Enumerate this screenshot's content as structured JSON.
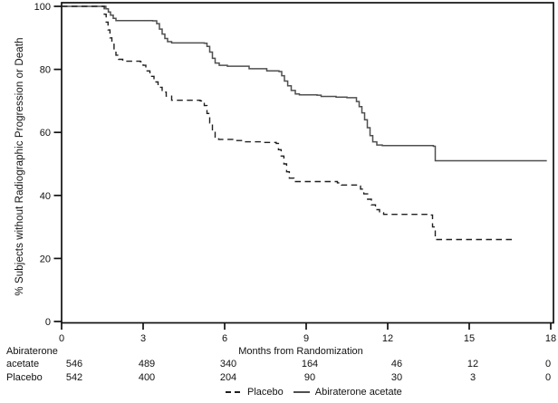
{
  "chart_data": {
    "type": "line",
    "subtype": "kaplan-meier-step",
    "title": "",
    "xlabel": "Months from Randomization",
    "ylabel": "% Subjects without Radiographic Progression or Death",
    "xlim": [
      0,
      18
    ],
    "ylim": [
      0,
      100
    ],
    "x_ticks": [
      0,
      3,
      6,
      9,
      12,
      15,
      18
    ],
    "y_ticks": [
      0,
      20,
      40,
      60,
      80,
      100
    ],
    "grid": false,
    "legend_position": "bottom",
    "frame_color": "#111111",
    "series": [
      {
        "name": "Abiraterone acetate",
        "style": "solid",
        "color": "#4f4f4f",
        "points": [
          [
            0,
            100
          ],
          [
            1.55,
            100
          ],
          [
            1.63,
            99.2
          ],
          [
            1.72,
            98.2
          ],
          [
            1.8,
            97.2
          ],
          [
            1.9,
            96.2
          ],
          [
            2.0,
            95.5
          ],
          [
            3.35,
            95.4
          ],
          [
            3.5,
            94.5
          ],
          [
            3.6,
            92.8
          ],
          [
            3.7,
            91.2
          ],
          [
            3.8,
            89.8
          ],
          [
            3.9,
            88.8
          ],
          [
            4.05,
            88.4
          ],
          [
            5.25,
            88.3
          ],
          [
            5.35,
            87.3
          ],
          [
            5.45,
            85.5
          ],
          [
            5.55,
            83.5
          ],
          [
            5.65,
            82
          ],
          [
            5.8,
            81.3
          ],
          [
            6.1,
            81
          ],
          [
            6.9,
            80.2
          ],
          [
            7.55,
            79.5
          ],
          [
            8.0,
            79.3
          ],
          [
            8.1,
            78
          ],
          [
            8.2,
            76.3
          ],
          [
            8.32,
            74.8
          ],
          [
            8.45,
            73.3
          ],
          [
            8.6,
            72.2
          ],
          [
            8.75,
            71.9
          ],
          [
            9.4,
            71.8
          ],
          [
            9.55,
            71.4
          ],
          [
            10.1,
            71.2
          ],
          [
            10.5,
            71
          ],
          [
            10.85,
            69.8
          ],
          [
            10.95,
            68.2
          ],
          [
            11.05,
            66.2
          ],
          [
            11.15,
            64
          ],
          [
            11.25,
            61.5
          ],
          [
            11.35,
            59
          ],
          [
            11.45,
            57
          ],
          [
            11.6,
            56
          ],
          [
            11.8,
            55.8
          ],
          [
            13.68,
            55.6
          ],
          [
            13.75,
            51
          ],
          [
            17.83,
            50.8
          ]
        ]
      },
      {
        "name": "Placebo",
        "style": "dashed",
        "color": "#1f1f1f",
        "points": [
          [
            0,
            100
          ],
          [
            1.5,
            100
          ],
          [
            1.57,
            97.5
          ],
          [
            1.64,
            95
          ],
          [
            1.71,
            92.5
          ],
          [
            1.78,
            90
          ],
          [
            1.85,
            88
          ],
          [
            1.93,
            86
          ],
          [
            2.0,
            84.5
          ],
          [
            2.1,
            83.2
          ],
          [
            2.25,
            82.6
          ],
          [
            2.9,
            82.4
          ],
          [
            3.0,
            81.3
          ],
          [
            3.1,
            79.5
          ],
          [
            3.25,
            77.8
          ],
          [
            3.4,
            76
          ],
          [
            3.55,
            74.3
          ],
          [
            3.7,
            72.8
          ],
          [
            3.85,
            71.5
          ],
          [
            4.05,
            70.2
          ],
          [
            5.1,
            70
          ],
          [
            5.25,
            68.5
          ],
          [
            5.35,
            66
          ],
          [
            5.45,
            63
          ],
          [
            5.55,
            60.5
          ],
          [
            5.65,
            58.5
          ],
          [
            5.78,
            57.8
          ],
          [
            6.4,
            57.4
          ],
          [
            6.7,
            57
          ],
          [
            7.4,
            56.8
          ],
          [
            7.9,
            56.5
          ],
          [
            7.98,
            54.5
          ],
          [
            8.08,
            52.5
          ],
          [
            8.18,
            50
          ],
          [
            8.28,
            47.5
          ],
          [
            8.38,
            45.5
          ],
          [
            8.55,
            44.4
          ],
          [
            10.15,
            44
          ],
          [
            10.3,
            43.3
          ],
          [
            10.9,
            43
          ],
          [
            11.0,
            42
          ],
          [
            11.12,
            40.5
          ],
          [
            11.26,
            38.8
          ],
          [
            11.4,
            37
          ],
          [
            11.55,
            35.5
          ],
          [
            11.7,
            34.5
          ],
          [
            11.85,
            34
          ],
          [
            13.55,
            33.8
          ],
          [
            13.65,
            30
          ],
          [
            13.75,
            26
          ],
          [
            16.65,
            25.8
          ]
        ]
      }
    ],
    "at_risk": {
      "rows": [
        {
          "label": "Abiraterone acetate",
          "label_lines": [
            "Abiraterone",
            "acetate"
          ],
          "counts": [
            "546",
            "489",
            "340",
            "164",
            "46",
            "12",
            "0"
          ]
        },
        {
          "label": "Placebo",
          "label_lines": [
            "Placebo"
          ],
          "counts": [
            "542",
            "400",
            "204",
            "90",
            "30",
            "3",
            "0"
          ]
        }
      ]
    },
    "legend": [
      {
        "label": "Placebo",
        "style": "dashed"
      },
      {
        "label": "Abiraterone acetate",
        "style": "solid"
      }
    ]
  }
}
